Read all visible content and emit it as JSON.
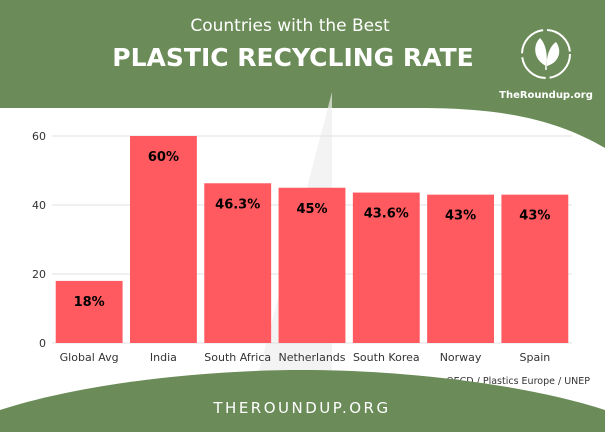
{
  "header": {
    "subtitle": "Countries with the Best",
    "title": "PLASTIC RECYCLING RATE"
  },
  "logo": {
    "text": "TheRoundup.org",
    "icon": "leaf-recycle-icon"
  },
  "footer": {
    "site": "THEROUNDUP.ORG"
  },
  "source": "OECD / Plastics Europe / UNEP",
  "colors": {
    "header_bg": "#6b8c58",
    "bar": "#ff5a5f",
    "gridline": "#e0e0e0",
    "background": "#ffffff"
  },
  "chart_data": {
    "type": "bar",
    "categories": [
      "Global Avg",
      "India",
      "South Africa",
      "Netherlands",
      "South Korea",
      "Norway",
      "Spain"
    ],
    "values": [
      18,
      60,
      46.3,
      45,
      43.6,
      43,
      43
    ],
    "data_labels": [
      "18%",
      "60%",
      "46.3%",
      "45%",
      "43.6%",
      "43%",
      "43%"
    ],
    "yticks": [
      0,
      20,
      40,
      60
    ],
    "ylim": [
      0,
      60
    ],
    "grid": true,
    "xlabel": "",
    "ylabel": ""
  }
}
